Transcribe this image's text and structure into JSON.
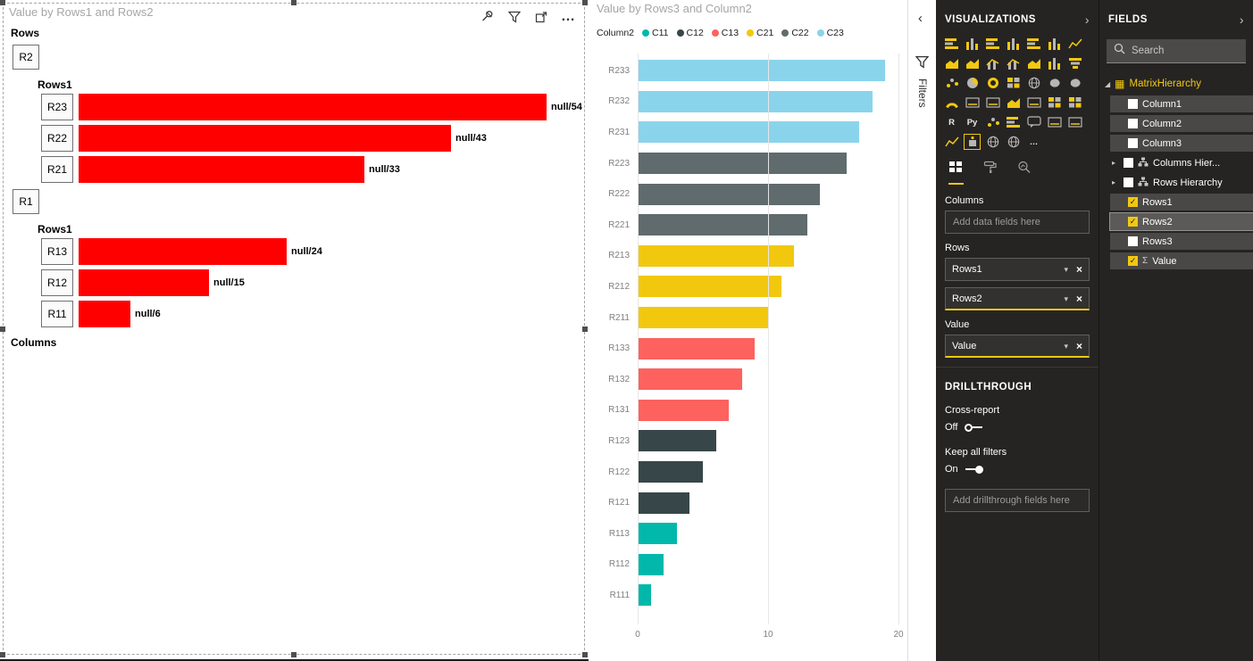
{
  "colors": {
    "accent": "#F2C811",
    "panel_bg": "#252423",
    "bar_red": "#FF0000",
    "palette": {
      "C11": "#01B8AA",
      "C12": "#374649",
      "C13": "#FD625E",
      "C21": "#F2C80F",
      "C22": "#5F6B6D",
      "C23": "#8AD4EB"
    }
  },
  "glyphs": {
    "caret_down": "▾",
    "close": "×",
    "check": "✓",
    "sigma": "Σ",
    "expanded": "◢",
    "collapsed": "▸",
    "ellipsis": "…",
    "chevron_left": "‹",
    "chevron_right": "›",
    "table": "▦"
  },
  "visual1": {
    "title": "Value by Rows1 and Rows2",
    "rows_section_label": "Rows",
    "columns_section_label": "Columns",
    "groups": [
      {
        "button": "R2",
        "sub_label": "Rows1",
        "bars": [
          {
            "button": "R23",
            "value": 54,
            "label": "null/54"
          },
          {
            "button": "R22",
            "value": 43,
            "label": "null/43"
          },
          {
            "button": "R21",
            "value": 33,
            "label": "null/33"
          }
        ]
      },
      {
        "button": "R1",
        "sub_label": "Rows1",
        "bars": [
          {
            "button": "R13",
            "value": 24,
            "label": "null/24"
          },
          {
            "button": "R12",
            "value": 15,
            "label": "null/15"
          },
          {
            "button": "R11",
            "value": 6,
            "label": "null/6"
          }
        ]
      }
    ]
  },
  "visual2": {
    "title": "Value by Rows3 and Column2",
    "legend_title": "Column2",
    "legend": [
      {
        "label": "C11",
        "color": "#01B8AA"
      },
      {
        "label": "C12",
        "color": "#374649"
      },
      {
        "label": "C13",
        "color": "#FD625E"
      },
      {
        "label": "C21",
        "color": "#F2C80F"
      },
      {
        "label": "C22",
        "color": "#5F6B6D"
      },
      {
        "label": "C23",
        "color": "#8AD4EB"
      }
    ]
  },
  "chart_data": [
    {
      "type": "bar",
      "orientation": "horizontal",
      "title": "Value by Rows1 and Rows2",
      "categories": [
        "R23",
        "R22",
        "R21",
        "R13",
        "R12",
        "R11"
      ],
      "values": [
        54,
        43,
        33,
        24,
        15,
        6
      ],
      "data_labels": [
        "null/54",
        "null/43",
        "null/33",
        "null/24",
        "null/15",
        "null/6"
      ],
      "color": "#FF0000",
      "xlim": [
        0,
        56
      ],
      "grid": false
    },
    {
      "type": "bar",
      "orientation": "horizontal",
      "title": "Value by Rows3 and Column2",
      "legend_title": "Column2",
      "legend": [
        "C11",
        "C12",
        "C13",
        "C21",
        "C22",
        "C23"
      ],
      "legend_position": "top",
      "categories": [
        "R233",
        "R232",
        "R231",
        "R223",
        "R222",
        "R221",
        "R213",
        "R212",
        "R211",
        "R133",
        "R132",
        "R131",
        "R123",
        "R122",
        "R121",
        "R113",
        "R112",
        "R111"
      ],
      "values": [
        19,
        18,
        17,
        16,
        14,
        13,
        12,
        11,
        10,
        9,
        8,
        7,
        6,
        5,
        4,
        3,
        2,
        1
      ],
      "series_keys": [
        "C23",
        "C23",
        "C23",
        "C22",
        "C22",
        "C22",
        "C21",
        "C21",
        "C21",
        "C13",
        "C13",
        "C13",
        "C12",
        "C12",
        "C12",
        "C11",
        "C11",
        "C11"
      ],
      "xlim": [
        0,
        20
      ],
      "xticks": [
        0,
        10,
        20
      ],
      "grid": true
    }
  ],
  "filters_pane": {
    "label": "Filters"
  },
  "visualizations": {
    "title": "VISUALIZATIONS",
    "icons_grid": [
      {
        "name": "stacked-bar-chart-icon",
        "type": "bar"
      },
      {
        "name": "stacked-column-chart-icon",
        "type": "col"
      },
      {
        "name": "clustered-bar-chart-icon",
        "type": "bar"
      },
      {
        "name": "clustered-column-chart-icon",
        "type": "col"
      },
      {
        "name": "100-stacked-bar-chart-icon",
        "type": "bar"
      },
      {
        "name": "100-stacked-column-chart-icon",
        "type": "col"
      },
      {
        "name": "line-chart-icon",
        "type": "line"
      },
      {
        "name": "area-chart-icon",
        "type": "area"
      },
      {
        "name": "stacked-area-chart-icon",
        "type": "area"
      },
      {
        "name": "line-and-stacked-column-chart-icon",
        "type": "combo"
      },
      {
        "name": "line-and-clustered-column-chart-icon",
        "type": "combo"
      },
      {
        "name": "ribbon-chart-icon",
        "type": "area"
      },
      {
        "name": "waterfall-chart-icon",
        "type": "col"
      },
      {
        "name": "funnel-chart-icon",
        "type": "funnel"
      },
      {
        "name": "scatter-chart-icon",
        "type": "scatter"
      },
      {
        "name": "pie-chart-icon",
        "type": "pie"
      },
      {
        "name": "donut-chart-icon",
        "type": "donut"
      },
      {
        "name": "treemap-icon",
        "type": "grid"
      },
      {
        "name": "map-icon",
        "type": "globe"
      },
      {
        "name": "filled-map-icon",
        "type": "blob"
      },
      {
        "name": "shape-map-icon",
        "type": "blob"
      },
      {
        "name": "gauge-icon",
        "type": "gauge"
      },
      {
        "name": "card-icon",
        "type": "card"
      },
      {
        "name": "multi-row-card-icon",
        "type": "card"
      },
      {
        "name": "kpi-icon",
        "type": "area"
      },
      {
        "name": "slicer-icon",
        "type": "card"
      },
      {
        "name": "table-icon",
        "type": "grid"
      },
      {
        "name": "matrix-icon",
        "type": "grid"
      },
      {
        "name": "r-script-visual-icon",
        "type": "text",
        "label": "R"
      },
      {
        "name": "python-visual-icon",
        "type": "text",
        "label": "Py"
      },
      {
        "name": "key-influencers-icon",
        "type": "scatter"
      },
      {
        "name": "decomposition-tree-icon",
        "type": "bar"
      },
      {
        "name": "qa-visual-icon",
        "type": "chat"
      },
      {
        "name": "smart-narrative-icon",
        "type": "card"
      },
      {
        "name": "paginated-report-icon",
        "type": "card"
      },
      {
        "name": "metrics-icon",
        "type": "line"
      },
      {
        "name": "custom-visual-icon",
        "type": "custom",
        "selected": true
      },
      {
        "name": "power-apps-visual-icon",
        "type": "globe"
      },
      {
        "name": "arcgis-map-icon",
        "type": "globe"
      },
      {
        "name": "get-more-visuals-icon",
        "type": "text",
        "label": "…"
      }
    ],
    "columns_well": {
      "label": "Columns",
      "placeholder": "Add data fields here"
    },
    "rows_well": {
      "label": "Rows",
      "pills": [
        {
          "label": "Rows1",
          "accent": false
        },
        {
          "label": "Rows2",
          "accent": true
        }
      ]
    },
    "value_well": {
      "label": "Value",
      "pills": [
        {
          "label": "Value",
          "accent": true
        }
      ]
    },
    "drillthrough": {
      "title": "DRILLTHROUGH",
      "cross_report": {
        "label": "Cross-report",
        "state": "Off"
      },
      "keep_all_filters": {
        "label": "Keep all filters",
        "state": "On"
      },
      "placeholder": "Add drillthrough fields here"
    }
  },
  "fields_pane": {
    "title": "FIELDS",
    "search_placeholder": "Search",
    "table": {
      "name": "MatrixHierarchy",
      "expanded": true
    },
    "items": [
      {
        "label": "Column1",
        "type": "field",
        "checked": false
      },
      {
        "label": "Column2",
        "type": "field",
        "checked": false
      },
      {
        "label": "Column3",
        "type": "field",
        "checked": false
      },
      {
        "label": "Columns Hier...",
        "type": "hierarchy",
        "checked": false
      },
      {
        "label": "Rows Hierarchy",
        "type": "hierarchy",
        "checked": false
      },
      {
        "label": "Rows1",
        "type": "field",
        "checked": true
      },
      {
        "label": "Rows2",
        "type": "field",
        "checked": true,
        "highlighted": true
      },
      {
        "label": "Rows3",
        "type": "field",
        "checked": false
      },
      {
        "label": "Value",
        "type": "measure",
        "checked": true
      }
    ]
  }
}
